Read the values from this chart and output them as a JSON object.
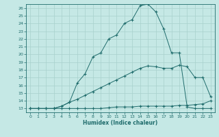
{
  "title": "",
  "xlabel": "Humidex (Indice chaleur)",
  "bg_color": "#c5e8e5",
  "line_color": "#1e6b6b",
  "grid_color": "#a8d0cc",
  "xlim": [
    -0.5,
    23.5
  ],
  "ylim": [
    12.5,
    26.5
  ],
  "xticks": [
    0,
    1,
    2,
    3,
    4,
    5,
    6,
    7,
    8,
    9,
    10,
    11,
    12,
    13,
    14,
    15,
    16,
    17,
    18,
    19,
    20,
    21,
    22,
    23
  ],
  "yticks": [
    13,
    14,
    15,
    16,
    17,
    18,
    19,
    20,
    21,
    22,
    23,
    24,
    25,
    26
  ],
  "line1_x": [
    0,
    1,
    2,
    3,
    4,
    5,
    6,
    7,
    8,
    9,
    10,
    11,
    12,
    13,
    14,
    15,
    16,
    17,
    18,
    19,
    20,
    21,
    22,
    23
  ],
  "line1_y": [
    13,
    13,
    13,
    13,
    13,
    13,
    13,
    13,
    13,
    13,
    13.1,
    13.2,
    13.2,
    13.2,
    13.3,
    13.3,
    13.3,
    13.3,
    13.3,
    13.4,
    13.4,
    13.5,
    13.6,
    14.0
  ],
  "line2_x": [
    0,
    1,
    2,
    3,
    4,
    5,
    6,
    7,
    8,
    9,
    10,
    11,
    12,
    13,
    14,
    15,
    16,
    17,
    18,
    19,
    20,
    21,
    22,
    23
  ],
  "line2_y": [
    13,
    13,
    13,
    13,
    13.3,
    13.8,
    14.2,
    14.7,
    15.2,
    15.7,
    16.2,
    16.7,
    17.2,
    17.7,
    18.2,
    18.5,
    18.4,
    18.2,
    18.2,
    18.6,
    18.4,
    17.0,
    17.0,
    14.5
  ],
  "line3_x": [
    0,
    1,
    2,
    3,
    4,
    5,
    6,
    7,
    8,
    9,
    10,
    11,
    12,
    13,
    14,
    15,
    16,
    17,
    18,
    19,
    20,
    21,
    22,
    23
  ],
  "line3_y": [
    13,
    13,
    13,
    13,
    13.3,
    13.8,
    16.3,
    17.5,
    19.7,
    20.2,
    22.0,
    22.5,
    24.0,
    24.5,
    26.3,
    26.5,
    25.5,
    23.3,
    20.2,
    20.2,
    13.2,
    13.0,
    13.0,
    13.0
  ]
}
